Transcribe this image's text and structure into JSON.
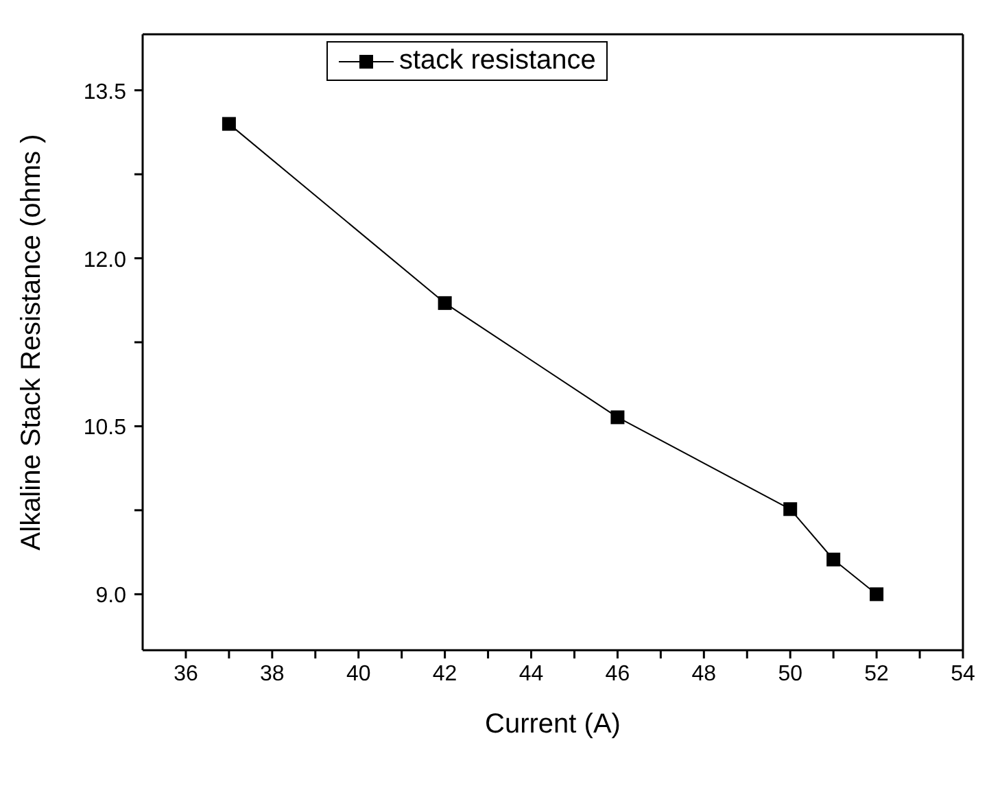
{
  "chart_data": {
    "type": "line",
    "xlabel": "Current (A)",
    "ylabel": "Alkaline Stack Resistance (ohms )",
    "x": [
      37,
      42,
      46,
      50,
      51,
      52
    ],
    "series": [
      {
        "name": "stack resistance",
        "color": "#000000",
        "values": [
          13.2,
          11.6,
          10.58,
          9.76,
          9.31,
          9.0
        ]
      }
    ],
    "xlim": [
      35,
      54
    ],
    "xticks": [
      36,
      {
        "value": 37,
        "label": null
      },
      38,
      {
        "value": 39,
        "label": null
      },
      40,
      {
        "value": 41,
        "label": null
      },
      42,
      {
        "value": 43,
        "label": null
      },
      44,
      {
        "value": 45,
        "label": null
      },
      46,
      {
        "value": 47,
        "label": null
      },
      48,
      {
        "value": 49,
        "label": null
      },
      50,
      {
        "value": 51,
        "label": null
      },
      52,
      {
        "value": 53,
        "label": null
      },
      54
    ],
    "ylim": [
      8.5,
      14
    ],
    "yticks": [
      {
        "value": 9.0,
        "label": "9.0"
      },
      {
        "value": 9.75,
        "label": null
      },
      {
        "value": 10.5,
        "label": "10.5"
      },
      {
        "value": 11.25,
        "label": null
      },
      {
        "value": 12.0,
        "label": "12.0"
      },
      {
        "value": 12.75,
        "label": null
      },
      {
        "value": 13.5,
        "label": "13.5"
      }
    ],
    "grid": false,
    "legend": "top",
    "marker": "square",
    "line_style": "solid"
  }
}
